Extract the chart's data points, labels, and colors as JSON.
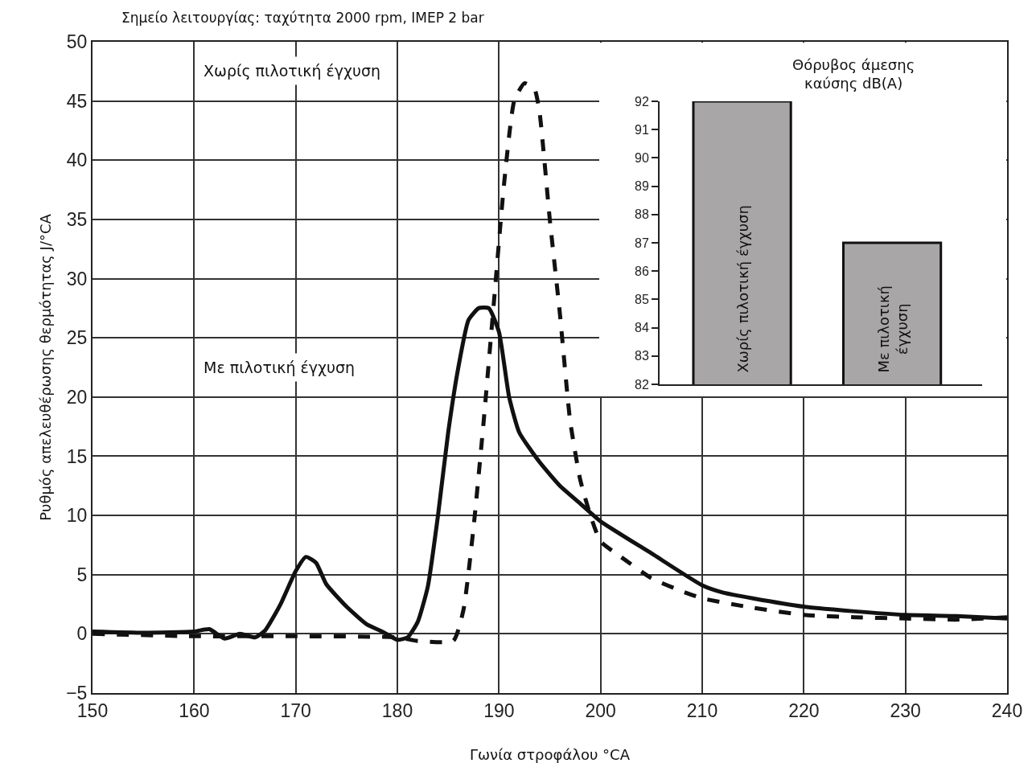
{
  "chart_data": [
    {
      "type": "line",
      "title": "Σημείο λειτουργίας: ταχύτητα 2000 rpm, IMEP 2 bar",
      "xlabel": "Γωνία στροφάλου °CA",
      "ylabel": "Ρυθμός απελευθέρωσης θερμότητας J/°CA",
      "xlim": [
        150,
        240
      ],
      "xticks": [
        150,
        160,
        170,
        180,
        190,
        200,
        210,
        220,
        230,
        240
      ],
      "ylim": [
        -5,
        50
      ],
      "yticks": [
        {
          "value": -5,
          "label": "−5"
        },
        0,
        5,
        10,
        15,
        20,
        25,
        30,
        35,
        40,
        45,
        50
      ],
      "grid": true,
      "marker": "none",
      "annotations": [
        "Χωρίς πιλοτική έγχυση",
        "Με πιλοτική έγχυση"
      ],
      "series": [
        {
          "color": "#111111",
          "line_style": "dashed",
          "x": [
            150,
            160,
            170,
            180,
            182,
            185.5,
            186.5,
            187.5,
            188.5,
            189.5,
            190.5,
            191.5,
            192.5,
            193.5,
            194,
            195,
            196,
            197,
            198,
            199,
            200,
            202,
            205,
            208,
            210,
            215,
            220,
            225,
            230,
            235,
            240
          ],
          "values": [
            0,
            -0.2,
            -0.2,
            -0.3,
            -0.6,
            -0.6,
            2,
            9,
            18,
            28,
            38,
            45,
            46.5,
            46,
            44,
            35,
            27,
            18,
            13,
            10,
            7.8,
            6.5,
            4.7,
            3.6,
            3.0,
            2.2,
            1.6,
            1.4,
            1.3,
            1.2,
            1.4
          ]
        },
        {
          "color": "#111111",
          "line_style": "solid",
          "x": [
            150,
            155,
            160,
            161.5,
            163,
            164.5,
            166,
            167,
            168.5,
            170,
            171,
            172,
            173,
            175,
            177,
            178.5,
            180,
            181,
            182,
            183,
            184,
            185,
            186,
            187,
            188,
            189,
            190,
            191,
            192,
            194,
            196,
            198,
            200,
            205,
            210,
            212,
            215,
            220,
            225,
            230,
            235,
            240
          ],
          "values": [
            0.2,
            0.1,
            0.2,
            0.4,
            -0.4,
            0,
            -0.3,
            0.3,
            2.5,
            5.3,
            6.5,
            6,
            4.2,
            2.3,
            0.8,
            0.2,
            -0.5,
            -0.3,
            1,
            4,
            10,
            17,
            22.5,
            26.5,
            27.5,
            27.5,
            25.5,
            20,
            17,
            14.5,
            12.5,
            11,
            9.5,
            6.8,
            4.1,
            3.5,
            3,
            2.3,
            1.9,
            1.6,
            1.5,
            1.3
          ]
        }
      ]
    },
    {
      "type": "bar",
      "title": "Θόρυβος άμεσης καύσης dB(A)",
      "categories": [
        "Χωρίς πιλοτική έγχυση",
        "Με πιλοτική έγχυση"
      ],
      "values": [
        92,
        87
      ],
      "color": "#a8a6a6",
      "ylim": [
        82,
        92
      ],
      "yticks": [
        82,
        83,
        84,
        85,
        86,
        87,
        88,
        89,
        90,
        91,
        92
      ],
      "tick_labels": "y",
      "grid": false
    }
  ]
}
